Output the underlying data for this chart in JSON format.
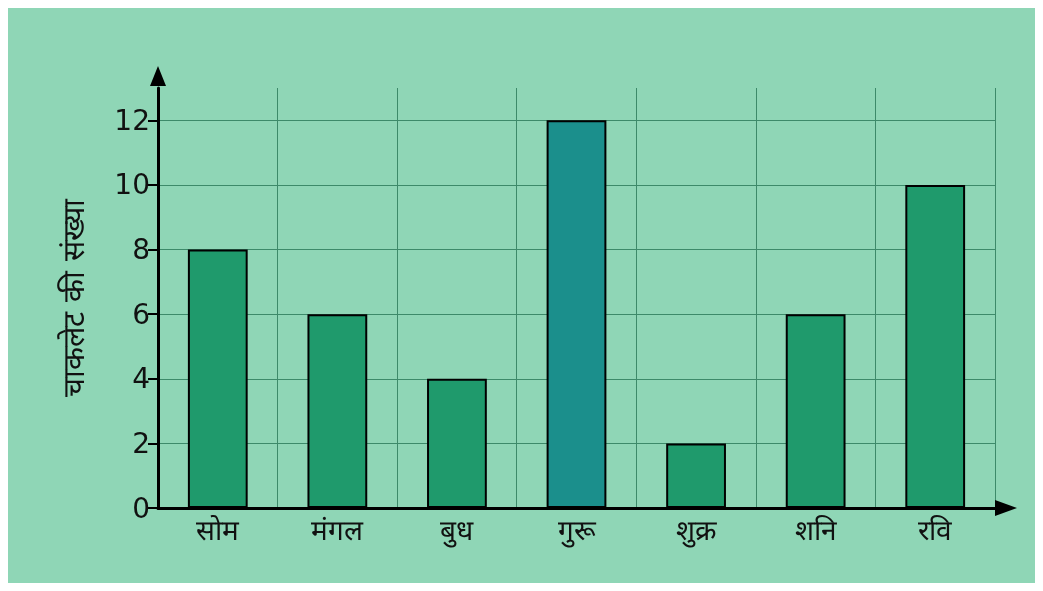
{
  "chart_data": {
    "type": "bar",
    "ylabel": "चाकलेट की संख्या",
    "categories": [
      "सोम",
      "मंगल",
      "बुध",
      "गुरू",
      "शुक्र",
      "शनि",
      "रवि"
    ],
    "values": [
      8,
      6,
      4,
      12,
      2,
      6,
      10
    ],
    "colors": [
      "#1f9a6c",
      "#1f9a6c",
      "#1f9a6c",
      "#1b8f8c",
      "#1f9a6c",
      "#1f9a6c",
      "#1f9a6c"
    ],
    "ylim": [
      0,
      13
    ],
    "yticks": [
      0,
      2,
      4,
      6,
      8,
      10,
      12
    ],
    "grid": true
  }
}
